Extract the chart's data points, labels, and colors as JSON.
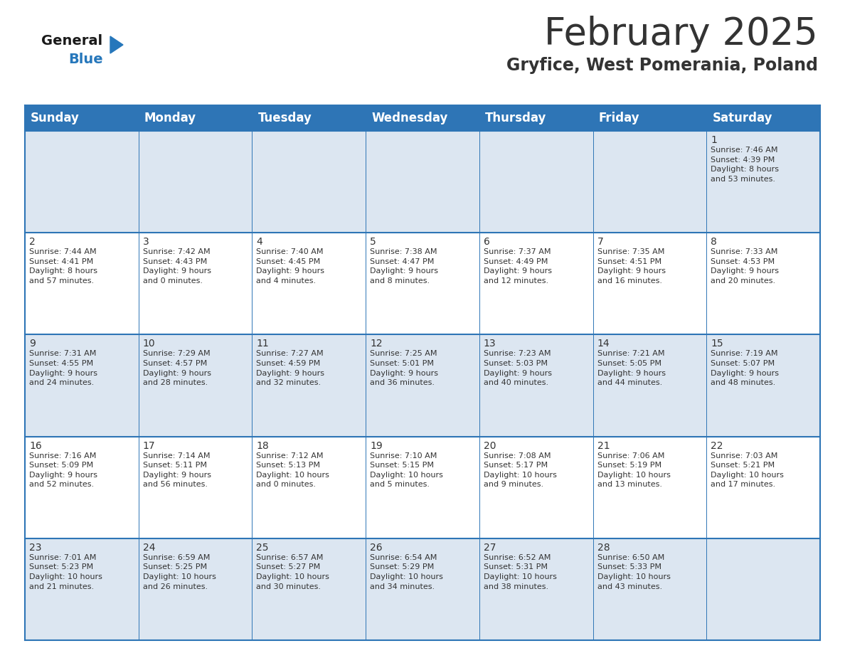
{
  "title": "February 2025",
  "subtitle": "Gryfice, West Pomerania, Poland",
  "header_color": "#2e75b6",
  "header_text_color": "#ffffff",
  "cell_bg_light": "#dce6f1",
  "cell_bg_white": "#ffffff",
  "border_color": "#2e75b6",
  "day_headers": [
    "Sunday",
    "Monday",
    "Tuesday",
    "Wednesday",
    "Thursday",
    "Friday",
    "Saturday"
  ],
  "weeks": [
    [
      {
        "day": null,
        "info": null
      },
      {
        "day": null,
        "info": null
      },
      {
        "day": null,
        "info": null
      },
      {
        "day": null,
        "info": null
      },
      {
        "day": null,
        "info": null
      },
      {
        "day": null,
        "info": null
      },
      {
        "day": 1,
        "info": "Sunrise: 7:46 AM\nSunset: 4:39 PM\nDaylight: 8 hours\nand 53 minutes."
      }
    ],
    [
      {
        "day": 2,
        "info": "Sunrise: 7:44 AM\nSunset: 4:41 PM\nDaylight: 8 hours\nand 57 minutes."
      },
      {
        "day": 3,
        "info": "Sunrise: 7:42 AM\nSunset: 4:43 PM\nDaylight: 9 hours\nand 0 minutes."
      },
      {
        "day": 4,
        "info": "Sunrise: 7:40 AM\nSunset: 4:45 PM\nDaylight: 9 hours\nand 4 minutes."
      },
      {
        "day": 5,
        "info": "Sunrise: 7:38 AM\nSunset: 4:47 PM\nDaylight: 9 hours\nand 8 minutes."
      },
      {
        "day": 6,
        "info": "Sunrise: 7:37 AM\nSunset: 4:49 PM\nDaylight: 9 hours\nand 12 minutes."
      },
      {
        "day": 7,
        "info": "Sunrise: 7:35 AM\nSunset: 4:51 PM\nDaylight: 9 hours\nand 16 minutes."
      },
      {
        "day": 8,
        "info": "Sunrise: 7:33 AM\nSunset: 4:53 PM\nDaylight: 9 hours\nand 20 minutes."
      }
    ],
    [
      {
        "day": 9,
        "info": "Sunrise: 7:31 AM\nSunset: 4:55 PM\nDaylight: 9 hours\nand 24 minutes."
      },
      {
        "day": 10,
        "info": "Sunrise: 7:29 AM\nSunset: 4:57 PM\nDaylight: 9 hours\nand 28 minutes."
      },
      {
        "day": 11,
        "info": "Sunrise: 7:27 AM\nSunset: 4:59 PM\nDaylight: 9 hours\nand 32 minutes."
      },
      {
        "day": 12,
        "info": "Sunrise: 7:25 AM\nSunset: 5:01 PM\nDaylight: 9 hours\nand 36 minutes."
      },
      {
        "day": 13,
        "info": "Sunrise: 7:23 AM\nSunset: 5:03 PM\nDaylight: 9 hours\nand 40 minutes."
      },
      {
        "day": 14,
        "info": "Sunrise: 7:21 AM\nSunset: 5:05 PM\nDaylight: 9 hours\nand 44 minutes."
      },
      {
        "day": 15,
        "info": "Sunrise: 7:19 AM\nSunset: 5:07 PM\nDaylight: 9 hours\nand 48 minutes."
      }
    ],
    [
      {
        "day": 16,
        "info": "Sunrise: 7:16 AM\nSunset: 5:09 PM\nDaylight: 9 hours\nand 52 minutes."
      },
      {
        "day": 17,
        "info": "Sunrise: 7:14 AM\nSunset: 5:11 PM\nDaylight: 9 hours\nand 56 minutes."
      },
      {
        "day": 18,
        "info": "Sunrise: 7:12 AM\nSunset: 5:13 PM\nDaylight: 10 hours\nand 0 minutes."
      },
      {
        "day": 19,
        "info": "Sunrise: 7:10 AM\nSunset: 5:15 PM\nDaylight: 10 hours\nand 5 minutes."
      },
      {
        "day": 20,
        "info": "Sunrise: 7:08 AM\nSunset: 5:17 PM\nDaylight: 10 hours\nand 9 minutes."
      },
      {
        "day": 21,
        "info": "Sunrise: 7:06 AM\nSunset: 5:19 PM\nDaylight: 10 hours\nand 13 minutes."
      },
      {
        "day": 22,
        "info": "Sunrise: 7:03 AM\nSunset: 5:21 PM\nDaylight: 10 hours\nand 17 minutes."
      }
    ],
    [
      {
        "day": 23,
        "info": "Sunrise: 7:01 AM\nSunset: 5:23 PM\nDaylight: 10 hours\nand 21 minutes."
      },
      {
        "day": 24,
        "info": "Sunrise: 6:59 AM\nSunset: 5:25 PM\nDaylight: 10 hours\nand 26 minutes."
      },
      {
        "day": 25,
        "info": "Sunrise: 6:57 AM\nSunset: 5:27 PM\nDaylight: 10 hours\nand 30 minutes."
      },
      {
        "day": 26,
        "info": "Sunrise: 6:54 AM\nSunset: 5:29 PM\nDaylight: 10 hours\nand 34 minutes."
      },
      {
        "day": 27,
        "info": "Sunrise: 6:52 AM\nSunset: 5:31 PM\nDaylight: 10 hours\nand 38 minutes."
      },
      {
        "day": 28,
        "info": "Sunrise: 6:50 AM\nSunset: 5:33 PM\nDaylight: 10 hours\nand 43 minutes."
      },
      {
        "day": null,
        "info": null
      }
    ]
  ],
  "logo_color_general": "#1a1a1a",
  "logo_color_blue": "#2677bb",
  "logo_triangle_color": "#2677bb",
  "title_fontsize": 38,
  "subtitle_fontsize": 17,
  "header_fontsize": 12,
  "day_number_fontsize": 10,
  "info_fontsize": 8,
  "text_color": "#333333"
}
